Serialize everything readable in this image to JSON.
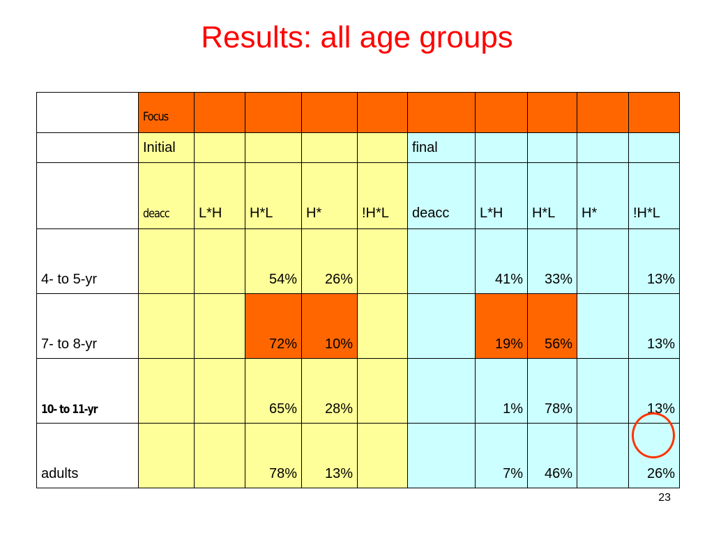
{
  "title": "Results: all age groups",
  "focus_label": "Focus",
  "phases": {
    "initial": "Initial",
    "final": "final"
  },
  "columns": [
    "deacc",
    "L*H",
    "H*L",
    "H*",
    "!H*L",
    "deacc",
    "L*H",
    "H*L",
    "H*",
    "!H*L"
  ],
  "rows": [
    {
      "label": "4- to 5-yr",
      "cells": [
        "",
        "",
        "54%",
        "26%",
        "",
        "",
        "41%",
        "33%",
        "",
        "13%"
      ]
    },
    {
      "label": "7- to 8-yr",
      "cells": [
        "",
        "",
        "72%",
        "10%",
        "",
        "",
        "19%",
        "56%",
        "",
        "13%"
      ]
    },
    {
      "label": "10- to 11-yr",
      "cells": [
        "",
        "",
        "65%",
        "28%",
        "",
        "",
        "1%",
        "78%",
        "",
        "13%"
      ]
    },
    {
      "label": "adults",
      "cells": [
        "",
        "",
        "78%",
        "13%",
        "",
        "",
        "7%",
        "46%",
        "",
        "26%"
      ]
    }
  ],
  "colors": {
    "title": "#ff0000",
    "focus": "#ff6600",
    "initial": "#ffff99",
    "final": "#ccffff",
    "circle": "#ff3300"
  },
  "page_number": "23"
}
